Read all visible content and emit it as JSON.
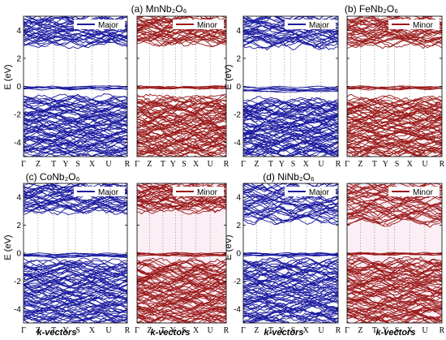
{
  "figure": {
    "xlabel": "k-vectors",
    "ylabel": "E (eV)",
    "colors": {
      "major": "#1a1aa0",
      "minor": "#9b1a1a",
      "axis": "#000000",
      "grid": "#888888",
      "background": "#ffffff"
    }
  },
  "chart_data": [
    {
      "panel": "a",
      "title": "(a) MnNb₂O₆",
      "type": "line",
      "ylabel": "E (eV)",
      "xlabel": "k-vectors",
      "ylim": [
        -5,
        5
      ],
      "yticks": [
        -4,
        -2,
        0,
        2,
        4
      ],
      "kpoints": [
        "Γ",
        "Z",
        "T",
        "Y",
        "S",
        "X",
        "U",
        "R"
      ],
      "series": [
        {
          "name": "Major",
          "color": "#1a1aa0",
          "bands": {
            "conduction": [
              3.0,
              5.0
            ],
            "gap_states": [
              -0.2,
              0.0
            ],
            "valence": [
              -5.0,
              -0.8
            ]
          }
        },
        {
          "name": "Minor",
          "color": "#9b1a1a",
          "bands": {
            "conduction": [
              3.1,
              5.0
            ],
            "gap_states": [
              -0.15,
              0.0
            ],
            "valence": [
              -5.0,
              -0.8
            ]
          }
        }
      ]
    },
    {
      "panel": "b",
      "title": "(b) FeNb₂O₆",
      "type": "line",
      "ylabel": "E (eV)",
      "xlabel": "k-vectors",
      "ylim": [
        -5,
        5
      ],
      "yticks": [
        -4,
        -2,
        0,
        2,
        4
      ],
      "kpoints": [
        "Γ",
        "Z",
        "T",
        "Y",
        "S",
        "X",
        "U",
        "R"
      ],
      "series": [
        {
          "name": "Major",
          "color": "#1a1aa0",
          "bands": {
            "conduction": [
              2.9,
              5.0
            ],
            "gap_states": [
              -0.4,
              0.0
            ],
            "valence": [
              -5.0,
              -1.0
            ]
          }
        },
        {
          "name": "Minor",
          "color": "#9b1a1a",
          "bands": {
            "conduction": [
              3.0,
              5.0
            ],
            "gap_states": [
              -0.2,
              0.0
            ],
            "valence": [
              -5.0,
              -0.9
            ]
          }
        }
      ]
    },
    {
      "panel": "c",
      "title": "(c) CoNb₂O₆",
      "type": "line",
      "ylabel": "E (eV)",
      "xlabel": "k-vectors",
      "ylim": [
        -5,
        5
      ],
      "yticks": [
        -4,
        -2,
        0,
        2,
        4
      ],
      "kpoints": [
        "Γ",
        "Z",
        "T",
        "Y",
        "S",
        "X",
        "U",
        "R"
      ],
      "series": [
        {
          "name": "Major",
          "color": "#1a1aa0",
          "bands": {
            "conduction": [
              3.0,
              5.0
            ],
            "gap_states": [
              -0.3,
              0.0
            ],
            "valence": [
              -5.0,
              -0.6
            ]
          }
        },
        {
          "name": "Minor",
          "color": "#9b1a1a",
          "bands": {
            "conduction": [
              3.1,
              5.0
            ],
            "gap_states": [
              -0.2,
              0.0
            ],
            "valence": [
              -5.0,
              -0.6
            ]
          }
        }
      ]
    },
    {
      "panel": "d",
      "title": "(d) NiNb₂O₆",
      "type": "line",
      "ylabel": "E (eV)",
      "xlabel": "k-vectors",
      "ylim": [
        -5,
        5
      ],
      "yticks": [
        -4,
        -2,
        0,
        2,
        4
      ],
      "kpoints": [
        "Γ",
        "Z",
        "T",
        "Y",
        "S",
        "X",
        "U",
        "R"
      ],
      "series": [
        {
          "name": "Major",
          "color": "#1a1aa0",
          "bands": {
            "conduction": [
              2.3,
              5.0
            ],
            "gap_states": [
              -0.2,
              0.0
            ],
            "valence": [
              -5.0,
              -0.5
            ]
          }
        },
        {
          "name": "Minor",
          "color": "#9b1a1a",
          "bands": {
            "conduction": [
              2.2,
              5.0
            ],
            "gap_states": [
              -0.1,
              0.0
            ],
            "valence": [
              -5.0,
              -0.5
            ]
          }
        }
      ]
    }
  ]
}
